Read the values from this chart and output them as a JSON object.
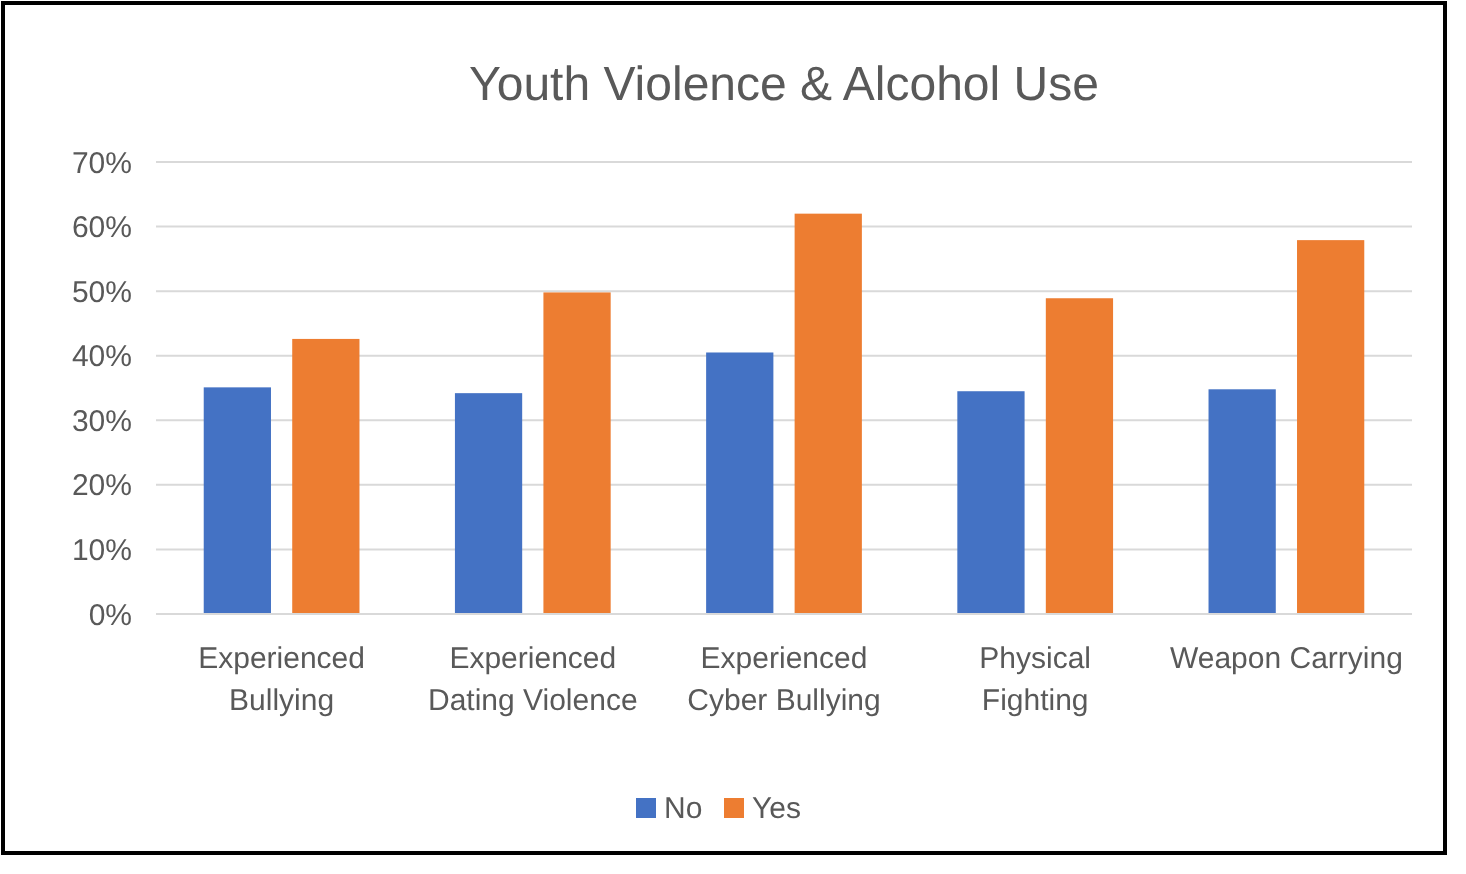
{
  "chart_data": {
    "type": "bar",
    "title": "Youth Violence & Alcohol Use",
    "categories": [
      "Experienced Bullying",
      "Experienced Dating Violence",
      "Experienced Cyber Bullying",
      "Physical Fighting",
      "Weapon Carrying"
    ],
    "series": [
      {
        "name": "No",
        "color": "#4472c4",
        "values": [
          35.1,
          34.2,
          40.5,
          34.5,
          34.8
        ]
      },
      {
        "name": "Yes",
        "color": "#ed7d31",
        "values": [
          42.6,
          49.8,
          62.0,
          48.9,
          57.9
        ]
      }
    ],
    "ylim": [
      0,
      70
    ],
    "yticks": [
      {
        "value": 0,
        "label": "0%"
      },
      {
        "value": 10,
        "label": "10%"
      },
      {
        "value": 20,
        "label": "20%"
      },
      {
        "value": 30,
        "label": "30%"
      },
      {
        "value": 40,
        "label": "40%"
      },
      {
        "value": 50,
        "label": "50%"
      },
      {
        "value": 60,
        "label": "60%"
      },
      {
        "value": 70,
        "label": "70%"
      }
    ],
    "grid": "y",
    "legend": "bottom"
  }
}
